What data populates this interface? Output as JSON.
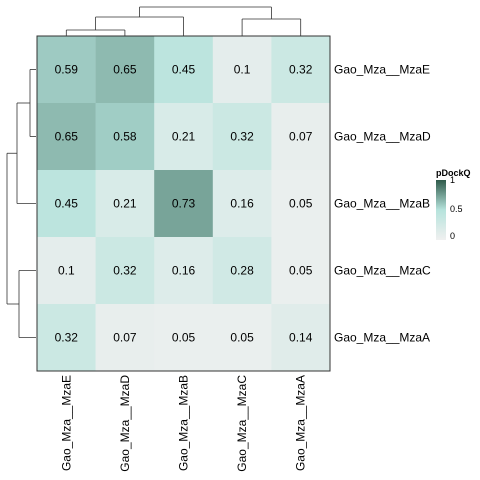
{
  "chart_data": {
    "type": "heatmap",
    "rows": [
      "Gao_Mza__MzaE",
      "Gao_Mza__MzaD",
      "Gao_Mza__MzaB",
      "Gao_Mza__MzaC",
      "Gao_Mza__MzaA"
    ],
    "columns": [
      "Gao_Mza__MzaE",
      "Gao_Mza__MzaD",
      "Gao_Mza__MzaB",
      "Gao_Mza__MzaC",
      "Gao_Mza__MzaA"
    ],
    "values": [
      [
        0.59,
        0.65,
        0.45,
        0.1,
        0.32
      ],
      [
        0.65,
        0.58,
        0.21,
        0.32,
        0.07
      ],
      [
        0.45,
        0.21,
        0.73,
        0.16,
        0.05
      ],
      [
        0.1,
        0.32,
        0.16,
        0.28,
        0.05
      ],
      [
        0.32,
        0.07,
        0.05,
        0.05,
        0.14
      ]
    ],
    "value_range": [
      0,
      1
    ],
    "colors": {
      "low": "#f0f0f0",
      "mid": "#b6e3dc",
      "high": "#2f5a4a",
      "border": "#333333"
    },
    "legend": {
      "title": "pDockQ",
      "ticks": [
        "1",
        "0.5",
        "0"
      ],
      "placement": "right"
    },
    "row_dendrogram": true,
    "column_dendrogram": true
  }
}
